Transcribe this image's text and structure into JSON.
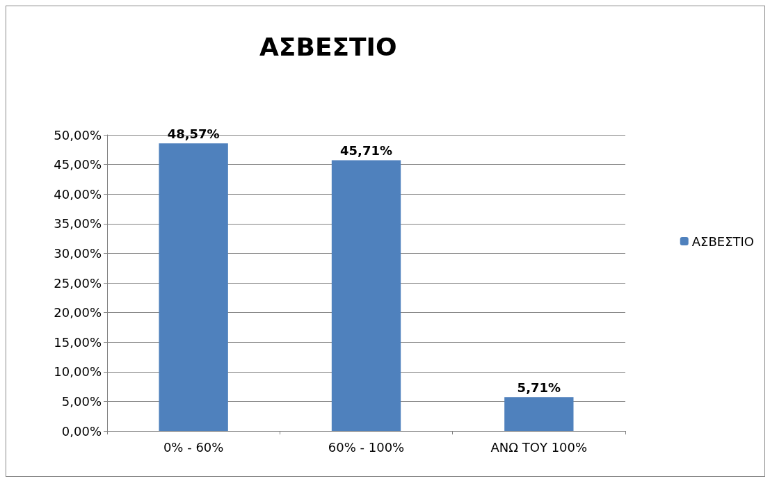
{
  "chart_data": {
    "type": "bar",
    "title": "ΑΣΒΕΣΤΙΟ",
    "categories": [
      "0% - 60%",
      "60% - 100%",
      "ΑΝΩ ΤΟΥ 100%"
    ],
    "series": [
      {
        "name": "ΑΣΒΕΣΤΙΟ",
        "color": "#4f81bd",
        "values": [
          48.57,
          45.71,
          5.71
        ],
        "value_labels": [
          "48,57%",
          "45,71%",
          "5,71%"
        ]
      }
    ],
    "ylim": [
      0,
      50
    ],
    "yticks": [
      {
        "value": 0,
        "label": "0,00%"
      },
      {
        "value": 5,
        "label": "5,00%"
      },
      {
        "value": 10,
        "label": "10,00%"
      },
      {
        "value": 15,
        "label": "15,00%"
      },
      {
        "value": 20,
        "label": "20,00%"
      },
      {
        "value": 25,
        "label": "25,00%"
      },
      {
        "value": 30,
        "label": "30,00%"
      },
      {
        "value": 35,
        "label": "35,00%"
      },
      {
        "value": 40,
        "label": "40,00%"
      },
      {
        "value": 45,
        "label": "45,00%"
      },
      {
        "value": 50,
        "label": "50,00%"
      }
    ],
    "grid": "y",
    "legend": "right"
  }
}
